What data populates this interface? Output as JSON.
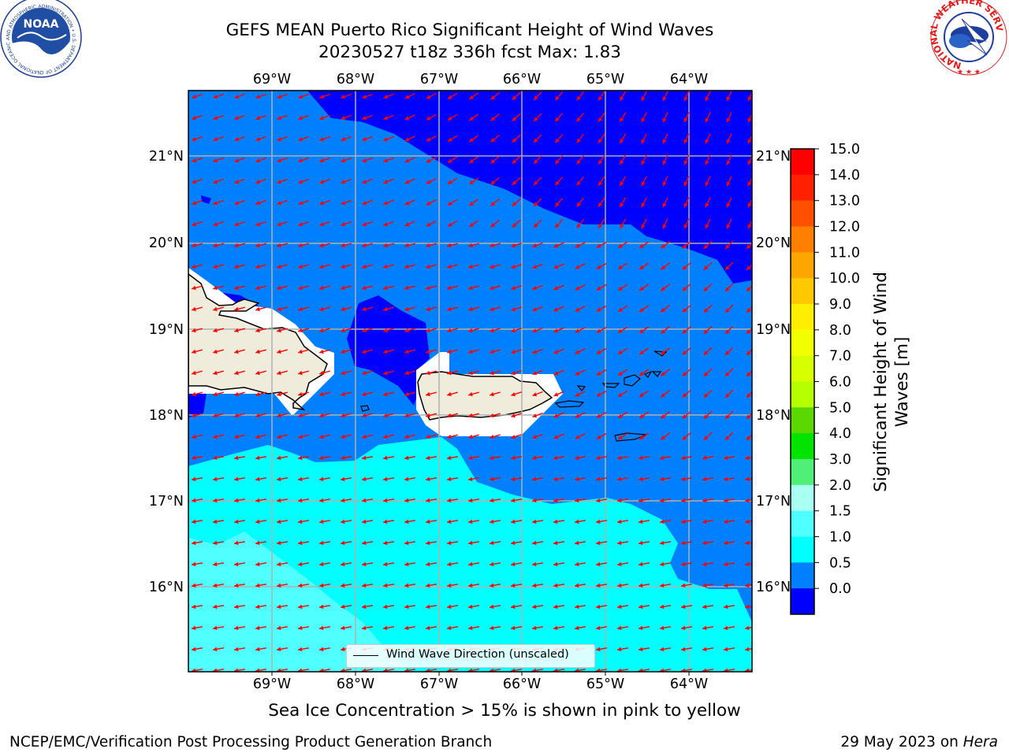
{
  "title": {
    "line1": "GEFS MEAN Puerto Rico Significant Height of Wind Waves",
    "line2": "20230527 t18z 336h fcst   Max: 1.83"
  },
  "map": {
    "lon_labels": [
      "69°W",
      "68°W",
      "67°W",
      "66°W",
      "65°W",
      "64°W"
    ],
    "lat_labels": [
      "21°N",
      "20°N",
      "19°N",
      "18°N",
      "17°N",
      "16°N"
    ],
    "legend_label": "Wind Wave Direction (unscaled)",
    "arrow_color": "#ff0000",
    "land_color": "#efecdc"
  },
  "colorbar": {
    "label": "Significant Height of Wind Waves [m]",
    "label_lines": [
      "Significant Height of Wind",
      "Waves [m]"
    ],
    "ticks": [
      "15.0",
      "14.0",
      "13.0",
      "12.0",
      "11.0",
      "10.0",
      "9.0",
      "8.0",
      "7.0",
      "6.0",
      "5.0",
      "4.0",
      "3.0",
      "2.0",
      "1.5",
      "1.0",
      "0.5",
      "0.0"
    ],
    "colors_top_to_bottom": [
      "#ff0000",
      "#ff2000",
      "#ff5000",
      "#ff8000",
      "#ffa500",
      "#ffc800",
      "#ffee00",
      "#f2ff00",
      "#d8ff00",
      "#b5ff00",
      "#5ad800",
      "#00e400",
      "#50ef78",
      "#a8fff2",
      "#50ffff",
      "#00ffff",
      "#0080ff",
      "#0000ff"
    ]
  },
  "logos": {
    "noaa_text": "NOAA",
    "noaa_ring": "NATIONAL OCEANIC AND ATMOSPHERIC ADMINISTRATION • U.S. DEPARTMENT OF COMMERCE",
    "nws_ring": "NATIONAL WEATHER SERVICE"
  },
  "notes": {
    "ice": "Sea Ice Concentration > 15% is shown in pink to yellow"
  },
  "footer": {
    "left": "NCEP/EMC/Verification Post Processing Product Generation Branch",
    "right_prefix": "29 May 2023 on ",
    "right_host": "Hera"
  }
}
